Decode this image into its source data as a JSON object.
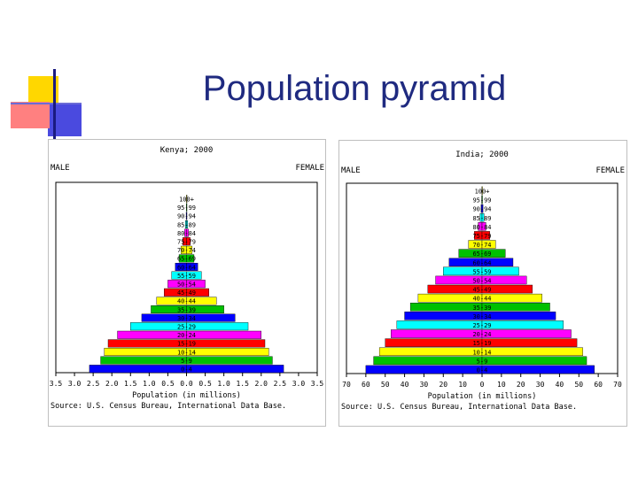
{
  "slide": {
    "title": "Population pyramid"
  },
  "age_groups": [
    "0-4",
    "5-9",
    "10-14",
    "15-19",
    "20-24",
    "25-29",
    "30-34",
    "35-39",
    "40-44",
    "45-49",
    "50-54",
    "55-59",
    "60-64",
    "65-69",
    "70-74",
    "75-79",
    "80-84",
    "85-89",
    "90-94",
    "95-99",
    "100+"
  ],
  "colors": {
    "bar_cycle": [
      "#0000ff",
      "#00c000",
      "#ffff00",
      "#ff0000",
      "#ff00ff",
      "#00ffff",
      "#0000ff",
      "#00c000",
      "#ffff00",
      "#ff0000",
      "#ff00ff",
      "#00ffff",
      "#0000ff",
      "#00c000",
      "#ffff00",
      "#ff0000",
      "#ff00ff",
      "#00ffff",
      "#0000ff",
      "#00c000",
      "#ffff00"
    ],
    "title_text": "#1f2a80"
  },
  "chart_data": [
    {
      "type": "bar",
      "orientation": "horizontal",
      "layout": "population-pyramid",
      "title": "Kenya; 2000",
      "left_label": "MALE",
      "right_label": "FEMALE",
      "xlabel": "Population (in millions)",
      "source": "Source: U.S. Census Bureau, International Data Base.",
      "xlim": [
        -3.5,
        3.5
      ],
      "ticks": [
        -3.5,
        -3.0,
        -2.5,
        -2.0,
        -1.5,
        -1.0,
        -0.5,
        0.0,
        0.5,
        1.0,
        1.5,
        2.0,
        2.5,
        3.0,
        3.5
      ],
      "tick_labels": [
        "3.5",
        "3.0",
        "2.5",
        "2.0",
        "1.5",
        "1.0",
        "0.5",
        "0.0",
        "0.5",
        "1.0",
        "1.5",
        "2.0",
        "2.5",
        "3.0",
        "3.5"
      ],
      "row_labels": [
        "0-4",
        "5-9",
        "10-14",
        "15-19",
        "20-24",
        "25-29",
        "30-34",
        "35-39",
        "40-44",
        "45-49",
        "50-54",
        "55-59",
        "60-64",
        "65-69",
        "70-74",
        "75-79",
        "80-84",
        "85-89",
        "90-94",
        "95-99",
        "100+"
      ],
      "series": [
        {
          "name": "MALE",
          "values": [
            2.6,
            2.3,
            2.2,
            2.1,
            1.85,
            1.5,
            1.2,
            0.95,
            0.8,
            0.6,
            0.5,
            0.4,
            0.3,
            0.2,
            0.15,
            0.1,
            0.05,
            0.03,
            0.01,
            0.005,
            0.002
          ]
        },
        {
          "name": "FEMALE",
          "values": [
            2.6,
            2.3,
            2.2,
            2.1,
            2.0,
            1.65,
            1.3,
            1.0,
            0.8,
            0.6,
            0.5,
            0.4,
            0.3,
            0.2,
            0.15,
            0.1,
            0.05,
            0.03,
            0.01,
            0.005,
            0.002
          ]
        }
      ]
    },
    {
      "type": "bar",
      "orientation": "horizontal",
      "layout": "population-pyramid",
      "title": "India; 2000",
      "left_label": "MALE",
      "right_label": "FEMALE",
      "xlabel": "Population (in millions)",
      "source": "Source: U.S. Census Bureau, International Data Base.",
      "xlim": [
        -70,
        70
      ],
      "ticks": [
        -70,
        -60,
        -50,
        -40,
        -30,
        -20,
        -10,
        0,
        10,
        20,
        30,
        40,
        50,
        60,
        70
      ],
      "tick_labels": [
        "70",
        "60",
        "50",
        "40",
        "30",
        "20",
        "10",
        "0",
        "10",
        "20",
        "30",
        "40",
        "50",
        "60",
        "70"
      ],
      "row_labels": [
        "0-4",
        "5-9",
        "10-14",
        "15-19",
        "20-24",
        "25-29",
        "30-34",
        "35-39",
        "40-44",
        "45-49",
        "50-54",
        "55-59",
        "60-64",
        "65-69",
        "70-74",
        "75-79",
        "80-84",
        "85-89",
        "90-94",
        "95-99",
        "100+"
      ],
      "series": [
        {
          "name": "MALE",
          "values": [
            60,
            56,
            53,
            50,
            47,
            44,
            40,
            37,
            33,
            28,
            24,
            20,
            17,
            12,
            7,
            4,
            2,
            1,
            0.5,
            0.2,
            0.1
          ]
        },
        {
          "name": "FEMALE",
          "values": [
            58,
            54,
            52,
            49,
            46,
            42,
            38,
            35,
            31,
            26,
            23,
            19,
            16,
            12,
            7,
            4,
            2,
            1,
            0.5,
            0.2,
            0.1
          ]
        }
      ]
    }
  ]
}
